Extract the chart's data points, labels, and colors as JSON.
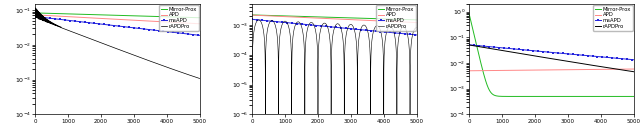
{
  "legend_labels": [
    "rAPDPro",
    "msAPD",
    "APD",
    "Mirror-Prox"
  ],
  "colors": {
    "rAPDPro": "#000000",
    "msAPD": "#2222dd",
    "APD": "#ff8888",
    "Mirror-Prox": "#22bb22"
  },
  "n_points": 5000,
  "subplots": [
    {
      "ylim": [
        0.0001,
        0.15
      ]
    },
    {
      "ylim": [
        1e-06,
        0.005
      ]
    },
    {
      "ylim": [
        0.0001,
        2.0
      ]
    }
  ]
}
